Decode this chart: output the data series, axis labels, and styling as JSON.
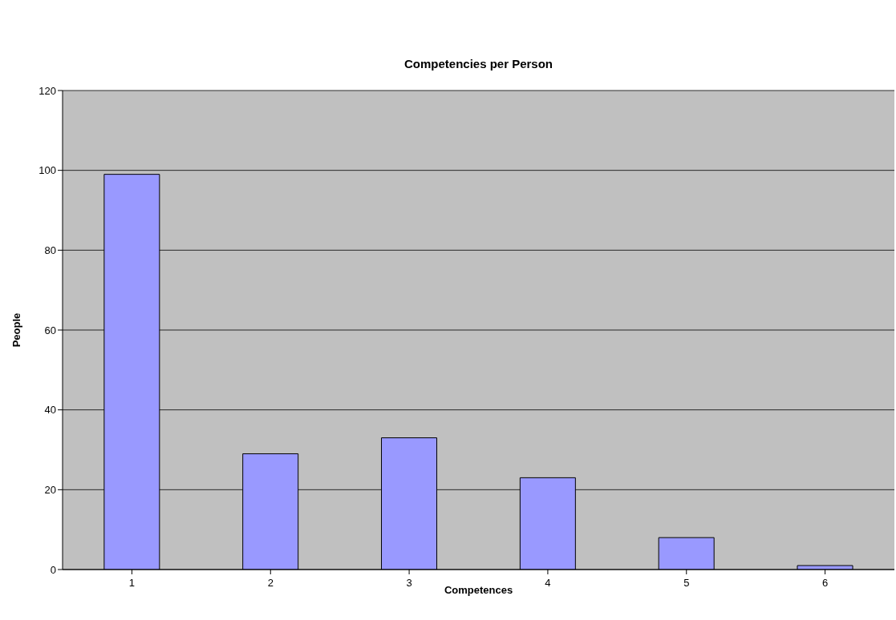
{
  "chart_data": {
    "type": "bar",
    "title": "Competencies per Person",
    "xlabel": "Competences",
    "ylabel": "People",
    "categories": [
      "1",
      "2",
      "3",
      "4",
      "5",
      "6"
    ],
    "values": [
      99,
      29,
      33,
      23,
      8,
      1
    ],
    "color": "#9999ff",
    "ylim": [
      0,
      120
    ],
    "yticks": [
      0,
      20,
      40,
      60,
      80,
      100,
      120
    ],
    "grid": "y"
  }
}
